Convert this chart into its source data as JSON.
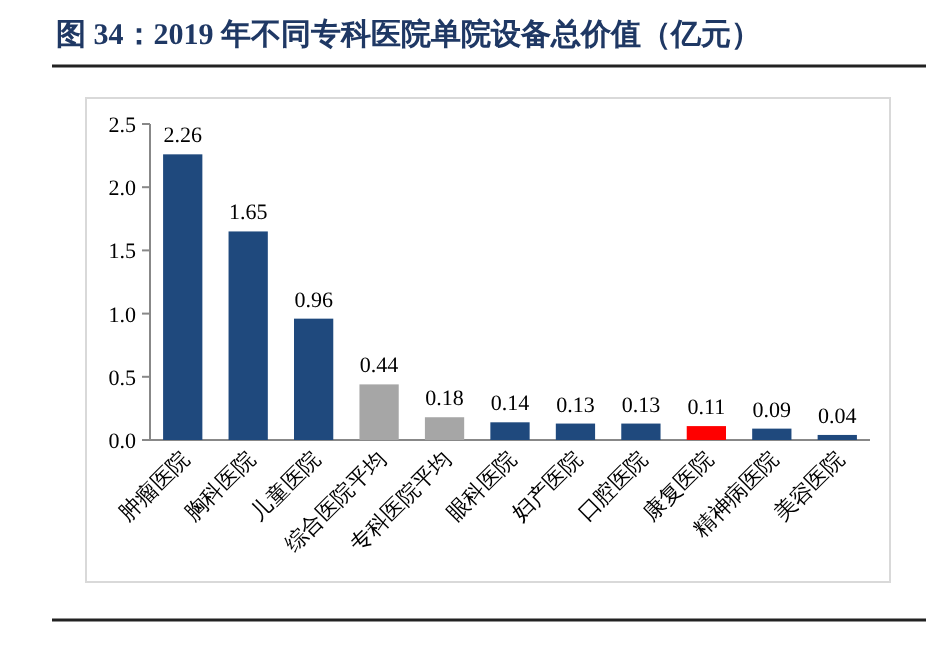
{
  "chart_data": {
    "type": "bar",
    "title": "图 34：2019 年不同专科医院单院设备总价值（亿元）",
    "categories": [
      "肿瘤医院",
      "胸科医院",
      "儿童医院",
      "综合医院平均",
      "专科医院平均",
      "眼科医院",
      "妇产医院",
      "口腔医院",
      "康复医院",
      "精神病医院",
      "美容医院"
    ],
    "values": [
      2.26,
      1.65,
      0.96,
      0.44,
      0.18,
      0.14,
      0.13,
      0.13,
      0.11,
      0.09,
      0.04
    ],
    "colors": [
      "#1f497d",
      "#1f497d",
      "#1f497d",
      "#a6a6a6",
      "#a6a6a6",
      "#1f497d",
      "#1f497d",
      "#1f497d",
      "#ff0000",
      "#1f497d",
      "#1f497d"
    ],
    "ylim": [
      0,
      2.5
    ],
    "yticks": [
      {
        "value": 0,
        "label": "0.0"
      },
      {
        "value": 0.5,
        "label": "0.5"
      },
      {
        "value": 1,
        "label": "1.0"
      },
      {
        "value": 1.5,
        "label": "1.5"
      },
      {
        "value": 2,
        "label": "2.0"
      },
      {
        "value": 2.5,
        "label": "2.5"
      }
    ],
    "data_labels": true
  }
}
